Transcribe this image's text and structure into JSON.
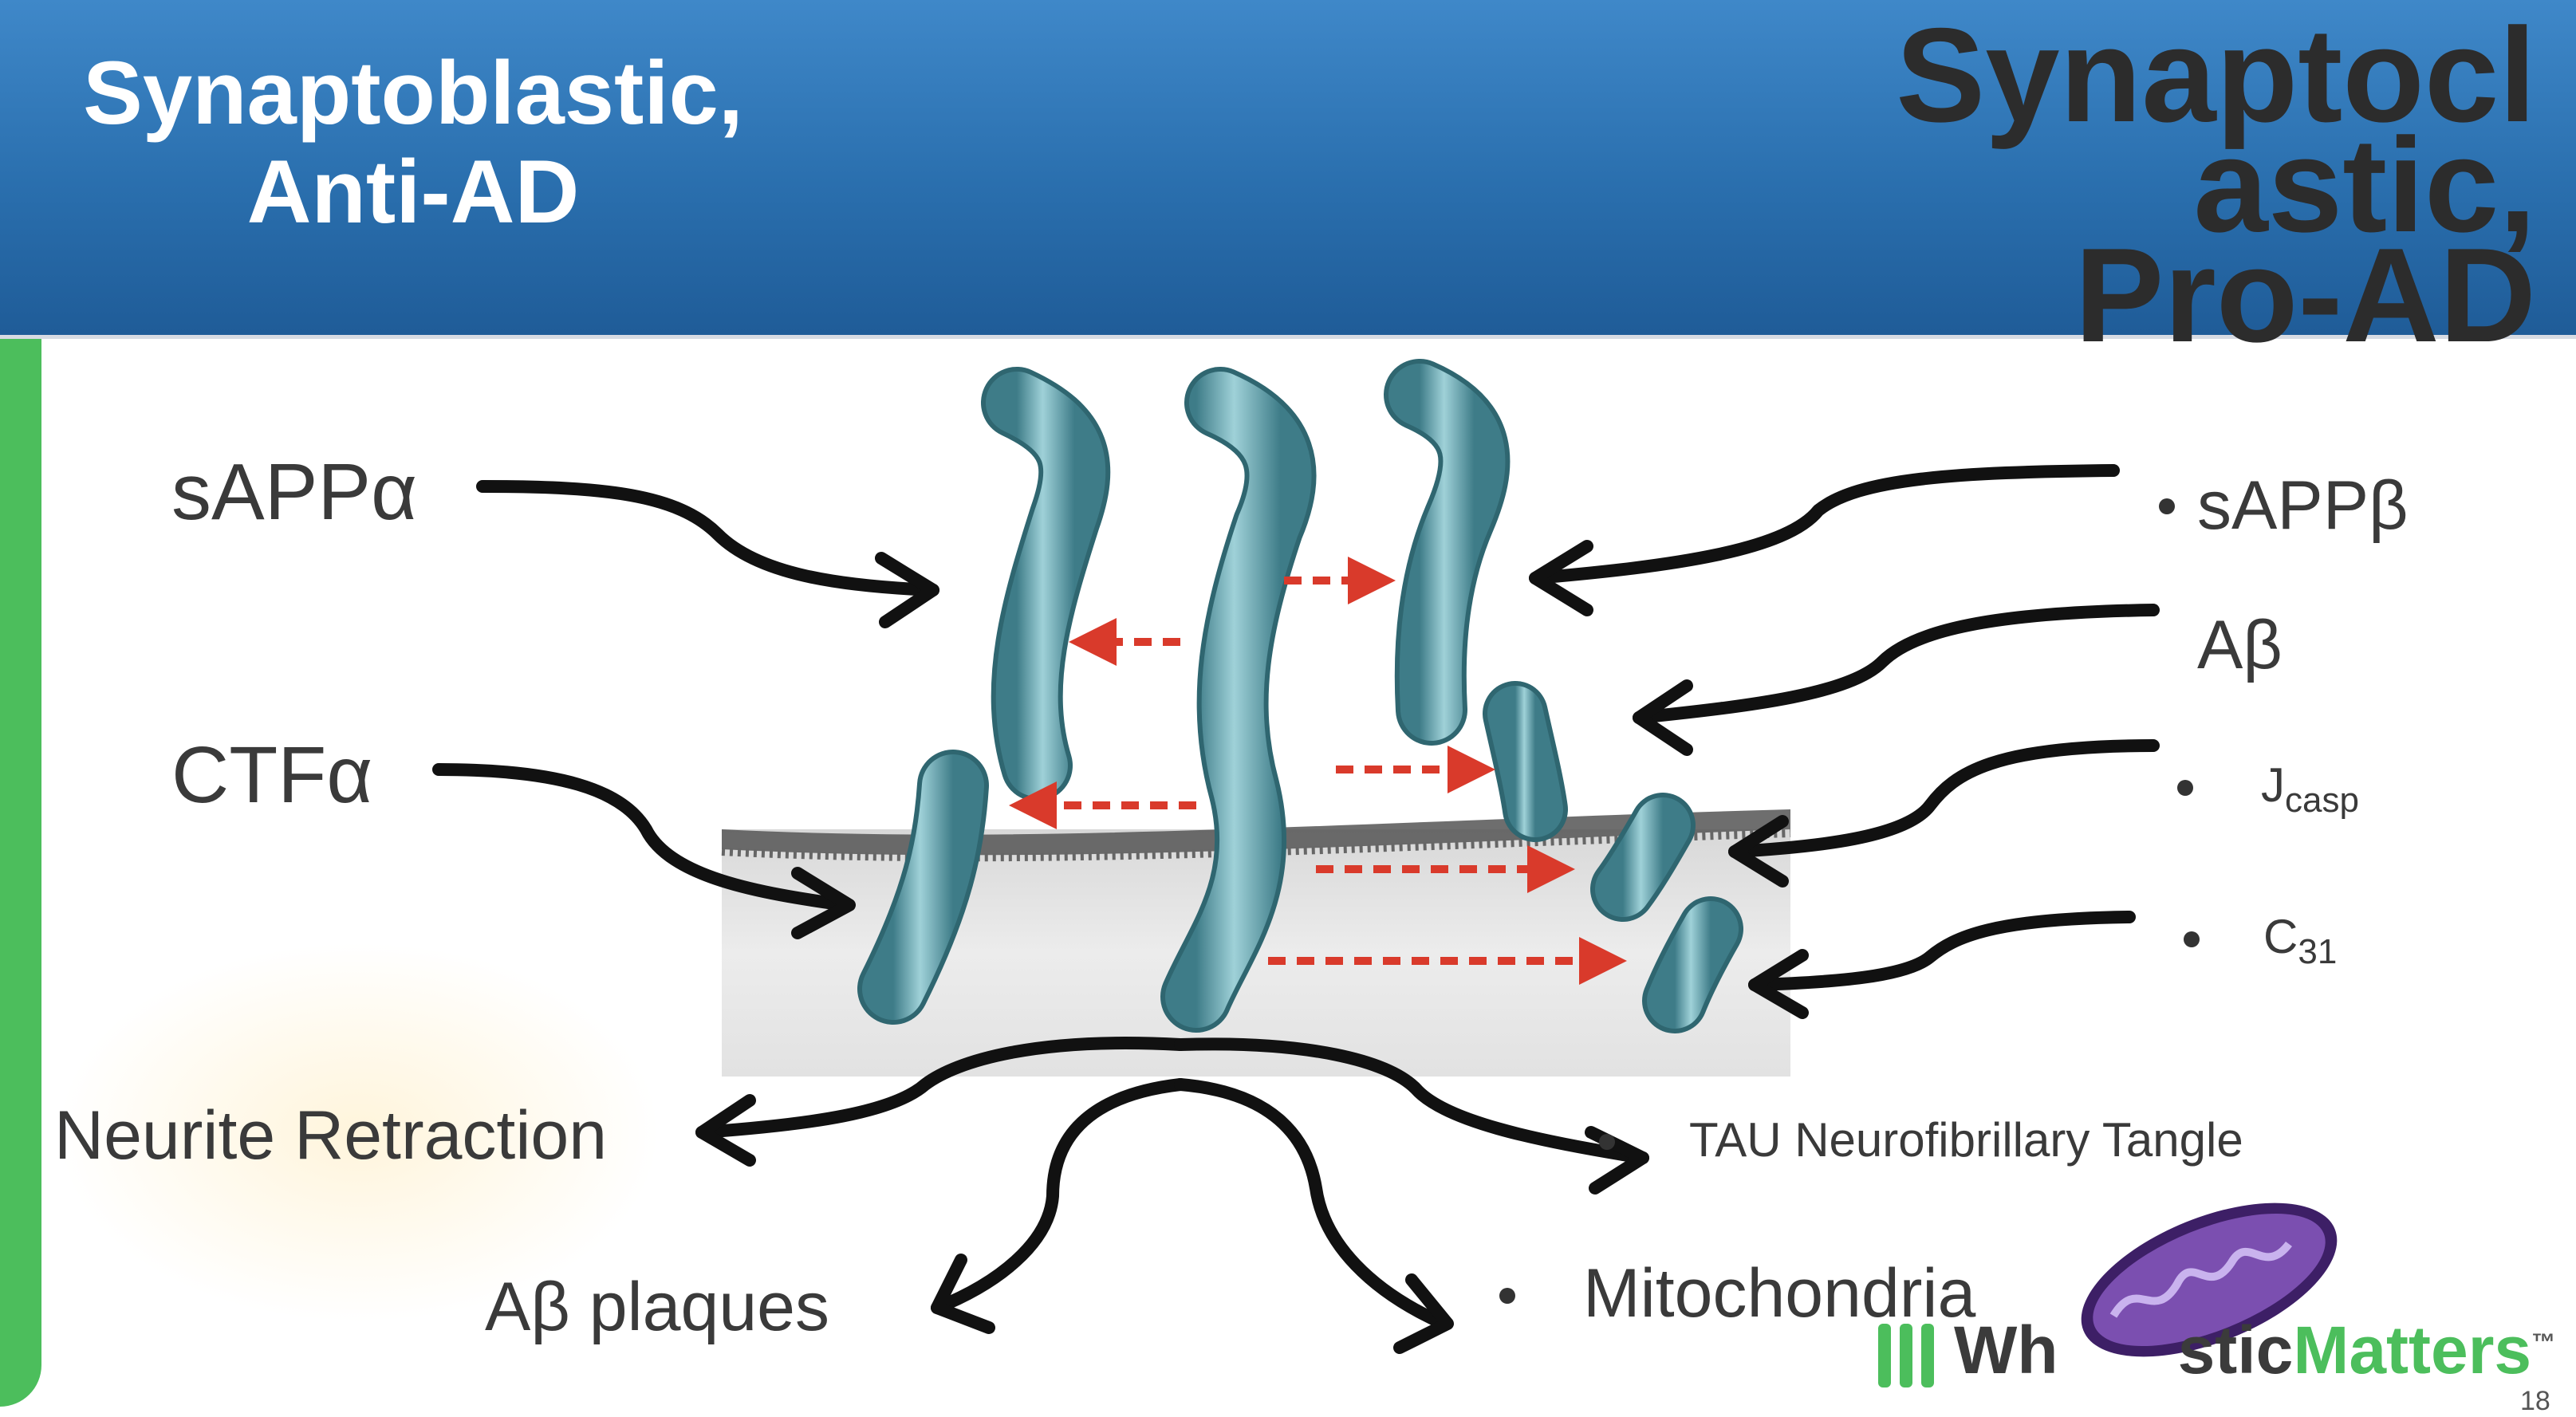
{
  "header": {
    "left_title_line1": "Synaptoblastic,",
    "left_title_line2": "Anti-AD",
    "right_title_line1": "Synaptocl",
    "right_title_line2": "astic,",
    "right_title_line3": "Pro-AD"
  },
  "labels": {
    "sappa": "sAPPα",
    "ctfa": "CTFα",
    "sappb": "sAPPβ",
    "abeta": "Aβ",
    "j_base": "J",
    "j_sub": "casp",
    "c_base": "C",
    "c_sub": "31",
    "neurite": "Neurite Retraction",
    "plaques": "Aβ plaques",
    "tau": "TAU Neurofibrillary Tangle",
    "mito": "Mitochondria"
  },
  "logo": {
    "part1": "Wh",
    "part2": "stic",
    "part3": "Matters",
    "tm": "™"
  },
  "page_number": "18",
  "colors": {
    "header_blue": "#2a6fae",
    "green_bar": "#4cbe5c",
    "tube": "#6aa7b2",
    "dashed_arrow": "#d93a2b",
    "mito_purple": "#7b4fb0"
  }
}
